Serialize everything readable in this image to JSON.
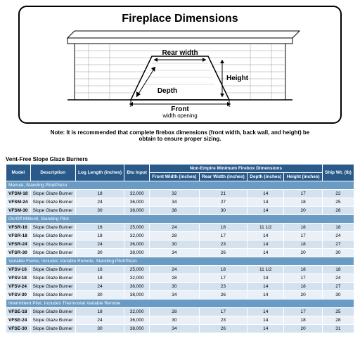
{
  "diagram": {
    "title": "Fireplace Dimensions",
    "labels": {
      "rear": "Rear width",
      "height": "Height",
      "depth": "Depth",
      "front": "Front",
      "front_sub": "width opening"
    },
    "note": "Note: It is recommended that complete firebox dimensions (front width, back wall, and height) be obtain to ensure proper sizing."
  },
  "table": {
    "title": "Vent-Free Slope Glaze Burners",
    "header_group": "Non-Empire Minimum Firebox Dimensions",
    "columns": {
      "model": "Model",
      "desc": "Description",
      "log": "Log Length (inches)",
      "btu": "Btu Input",
      "front": "Front Width (inches)",
      "rear": "Rear Width (inches)",
      "depth": "Depth (inches)",
      "height": "Height (inches)",
      "ship": "Ship Wt. (lb)"
    },
    "groups": [
      {
        "label": "Manual, Standing Pilot/Piezo",
        "rows": [
          {
            "model": "VFSM-18",
            "desc": "Slope Glaze Burner",
            "log": "18",
            "btu": "32,000",
            "front": "32",
            "rear": "21",
            "depth": "14",
            "height": "17",
            "ship": "22"
          },
          {
            "model": "VFSM-24",
            "desc": "Slope Glaze Burner",
            "log": "24",
            "btu": "36,000",
            "front": "34",
            "rear": "27",
            "depth": "14",
            "height": "18",
            "ship": "25"
          },
          {
            "model": "VFSM-30",
            "desc": "Slope Glaze Burner",
            "log": "30",
            "btu": "38,000",
            "front": "38",
            "rear": "30",
            "depth": "14",
            "height": "20",
            "ship": "28"
          }
        ]
      },
      {
        "label": "On/Off Millivolt, Standing Pilot",
        "rows": [
          {
            "model": "VFSR-16",
            "desc": "Slope Glaze Burner",
            "log": "16",
            "btu": "25,000",
            "front": "24",
            "rear": "18",
            "depth": "11 1/2",
            "height": "18",
            "ship": "18"
          },
          {
            "model": "VFSR-18",
            "desc": "Slope Glaze Burner",
            "log": "18",
            "btu": "32,000",
            "front": "28",
            "rear": "17",
            "depth": "14",
            "height": "17",
            "ship": "24"
          },
          {
            "model": "VFSR-24",
            "desc": "Slope Glaze Burner",
            "log": "24",
            "btu": "36,000",
            "front": "30",
            "rear": "23",
            "depth": "14",
            "height": "18",
            "ship": "27"
          },
          {
            "model": "VFSR-30",
            "desc": "Slope Glaze Burner",
            "log": "30",
            "btu": "38,000",
            "front": "34",
            "rear": "26",
            "depth": "14",
            "height": "20",
            "ship": "30"
          }
        ]
      },
      {
        "label": "Variable Flame, Includes Variable Remote, Standing Pilot/Piezo",
        "rows": [
          {
            "model": "VFSV-16",
            "desc": "Slope Glaze Burner",
            "log": "16",
            "btu": "25,000",
            "front": "24",
            "rear": "18",
            "depth": "11 1/2",
            "height": "18",
            "ship": "18"
          },
          {
            "model": "VFSV-18",
            "desc": "Slope Glaze Burner",
            "log": "18",
            "btu": "32,000",
            "front": "28",
            "rear": "17",
            "depth": "14",
            "height": "17",
            "ship": "24"
          },
          {
            "model": "VFSV-24",
            "desc": "Slope Glaze Burner",
            "log": "24",
            "btu": "36,000",
            "front": "30",
            "rear": "23",
            "depth": "14",
            "height": "18",
            "ship": "27"
          },
          {
            "model": "VFSV-30",
            "desc": "Slope Glaze Burner",
            "log": "30",
            "btu": "38,000",
            "front": "34",
            "rear": "26",
            "depth": "14",
            "height": "20",
            "ship": "30"
          }
        ]
      },
      {
        "label": "Intermittent Pilot, Includes Thermostat Variable Remote",
        "rows": [
          {
            "model": "VFSE-18",
            "desc": "Slope Glaze Burner",
            "log": "18",
            "btu": "32,000",
            "front": "28",
            "rear": "17",
            "depth": "14",
            "height": "17",
            "ship": "25"
          },
          {
            "model": "VFSE-24",
            "desc": "Slope Glaze Burner",
            "log": "24",
            "btu": "36,000",
            "front": "30",
            "rear": "23",
            "depth": "14",
            "height": "18",
            "ship": "28"
          },
          {
            "model": "VFSE-30",
            "desc": "Slope Glaze Burner",
            "log": "30",
            "btu": "38,000",
            "front": "34",
            "rear": "26",
            "depth": "14",
            "height": "20",
            "ship": "31"
          }
        ]
      }
    ]
  },
  "style": {
    "header_bg": "#2a5a8a",
    "group_bg": "#6a9bc4",
    "row_odd": "#d4e2ef",
    "row_even": "#eaf0f7"
  }
}
